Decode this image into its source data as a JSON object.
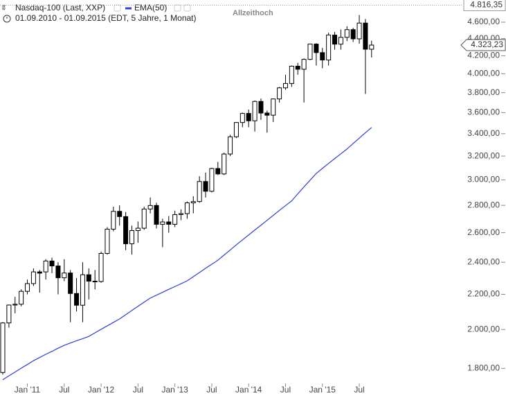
{
  "chart_data": {
    "type": "candlestick",
    "subtitle": "01.09.2010 - 01.09.2015 (EDT, 5 Jahre, 1 Monat)",
    "log_scale": true,
    "grid": false,
    "categories": [
      null,
      null,
      null,
      null,
      "Jan '11",
      null,
      null,
      null,
      null,
      null,
      "Jul",
      null,
      null,
      null,
      null,
      null,
      "Jan '12",
      null,
      null,
      null,
      null,
      null,
      "Jul",
      null,
      null,
      null,
      null,
      null,
      "Jan '13",
      null,
      null,
      null,
      null,
      null,
      "Jul",
      null,
      null,
      null,
      null,
      null,
      "Jan '14",
      null,
      null,
      null,
      null,
      null,
      "Jul",
      null,
      null,
      null,
      null,
      null,
      "Jan '15",
      null,
      null,
      null,
      null,
      null,
      "Jul",
      null,
      null
    ],
    "series": [
      {
        "name": "Nasdaq-100 (Last, XXP)",
        "type": "candlestick",
        "up_color": "#ffffff",
        "down_color": "#000000",
        "open": [
          1780,
          2036,
          2137,
          2142,
          2218,
          2265,
          2338,
          2338,
          2408,
          2376,
          2301,
          2331,
          2205,
          2136,
          2320,
          2280,
          2278,
          2458,
          2625,
          2755,
          2716,
          2523,
          2615,
          2632,
          2772,
          2799,
          2660,
          2677,
          2660,
          2731,
          2738,
          2819,
          2829,
          2987,
          2909,
          3094,
          3049,
          3218,
          3372,
          3505,
          3592,
          3521,
          3711,
          3596,
          3575,
          3736,
          3850,
          3896,
          4083,
          4049,
          4159,
          4335,
          4236,
          4152,
          4442,
          4334,
          4415,
          4508,
          4397,
          4589,
          4275
        ],
        "high": [
          2040,
          2140,
          2185,
          2230,
          2290,
          2360,
          2350,
          2420,
          2430,
          2400,
          2420,
          2350,
          2300,
          2400,
          2360,
          2350,
          2470,
          2640,
          2790,
          2800,
          2750,
          2650,
          2680,
          2790,
          2860,
          2820,
          2700,
          2720,
          2760,
          2770,
          2830,
          2870,
          3030,
          3060,
          3100,
          3150,
          3230,
          3390,
          3510,
          3600,
          3630,
          3720,
          3740,
          3620,
          3740,
          3860,
          3990,
          4090,
          4120,
          4170,
          4340,
          4345,
          4290,
          4470,
          4480,
          4510,
          4550,
          4530,
          4690,
          4640,
          4375
        ],
        "low": [
          1770,
          2010,
          2090,
          2130,
          2200,
          2250,
          2210,
          2290,
          2330,
          2200,
          2280,
          2040,
          2100,
          2040,
          2170,
          2230,
          2270,
          2450,
          2610,
          2650,
          2480,
          2450,
          2530,
          2620,
          2740,
          2630,
          2500,
          2600,
          2640,
          2690,
          2700,
          2740,
          2820,
          2860,
          2900,
          3040,
          3040,
          3200,
          3360,
          3460,
          3460,
          3420,
          3530,
          3410,
          3510,
          3700,
          3830,
          3860,
          3990,
          3700,
          4150,
          4090,
          4060,
          4090,
          4270,
          4270,
          4370,
          4360,
          4340,
          3787,
          4180
        ],
        "close": [
          2036,
          2137,
          2142,
          2218,
          2265,
          2338,
          2330,
          2408,
          2376,
          2301,
          2331,
          2205,
          2136,
          2320,
          2280,
          2278,
          2458,
          2625,
          2755,
          2716,
          2523,
          2615,
          2632,
          2772,
          2799,
          2660,
          2677,
          2660,
          2731,
          2738,
          2819,
          2829,
          2987,
          2909,
          3094,
          3049,
          3218,
          3372,
          3505,
          3592,
          3521,
          3711,
          3596,
          3575,
          3736,
          3850,
          3896,
          4083,
          4049,
          4159,
          4335,
          4236,
          4152,
          4442,
          4334,
          4415,
          4508,
          4397,
          4589,
          4275,
          4323.23
        ]
      },
      {
        "name": "EMA(50)",
        "type": "line",
        "color": "#2b3fd6",
        "values": [
          1745,
          1764,
          1782,
          1801,
          1819,
          1838,
          1854,
          1870,
          1885,
          1901,
          1916,
          1928,
          1940,
          1951,
          1963,
          1982,
          2001,
          2020,
          2039,
          2058,
          2082,
          2106,
          2130,
          2154,
          2178,
          2195,
          2212,
          2230,
          2247,
          2264,
          2282,
          2308,
          2334,
          2361,
          2387,
          2413,
          2447,
          2481,
          2516,
          2550,
          2584,
          2619,
          2653,
          2689,
          2725,
          2762,
          2798,
          2834,
          2889,
          2944,
          2998,
          3053,
          3095,
          3137,
          3178,
          3220,
          3262,
          3311,
          3360,
          3409,
          3458
        ]
      }
    ],
    "ylim": [
      1728,
      4885
    ],
    "yticks": [
      {
        "value": 1800,
        "label": "1.800,00"
      },
      {
        "value": 2000,
        "label": "2.000,00"
      },
      {
        "value": 2200,
        "label": "2.200,00"
      },
      {
        "value": 2400,
        "label": "2.400,00"
      },
      {
        "value": 2600,
        "label": "2.600,00"
      },
      {
        "value": 2800,
        "label": "2.800,00"
      },
      {
        "value": 3000,
        "label": "3.000,00"
      },
      {
        "value": 3200,
        "label": "3.200,00"
      },
      {
        "value": 3400,
        "label": "3.400,00"
      },
      {
        "value": 3600,
        "label": "3.600,00"
      },
      {
        "value": 3800,
        "label": "3.800,00"
      },
      {
        "value": 4000,
        "label": "4.000,00"
      },
      {
        "value": 4200,
        "label": "4.200,00"
      },
      {
        "value": 4400,
        "label": "4.400,00"
      },
      {
        "value": 4600,
        "label": "4.600,00"
      }
    ],
    "all_time_high": {
      "value": 4816.35,
      "label": "4.816,35",
      "annotation": "Allzeithoch"
    },
    "last_price": {
      "value": 4323.23,
      "label": "4.323,23"
    }
  }
}
